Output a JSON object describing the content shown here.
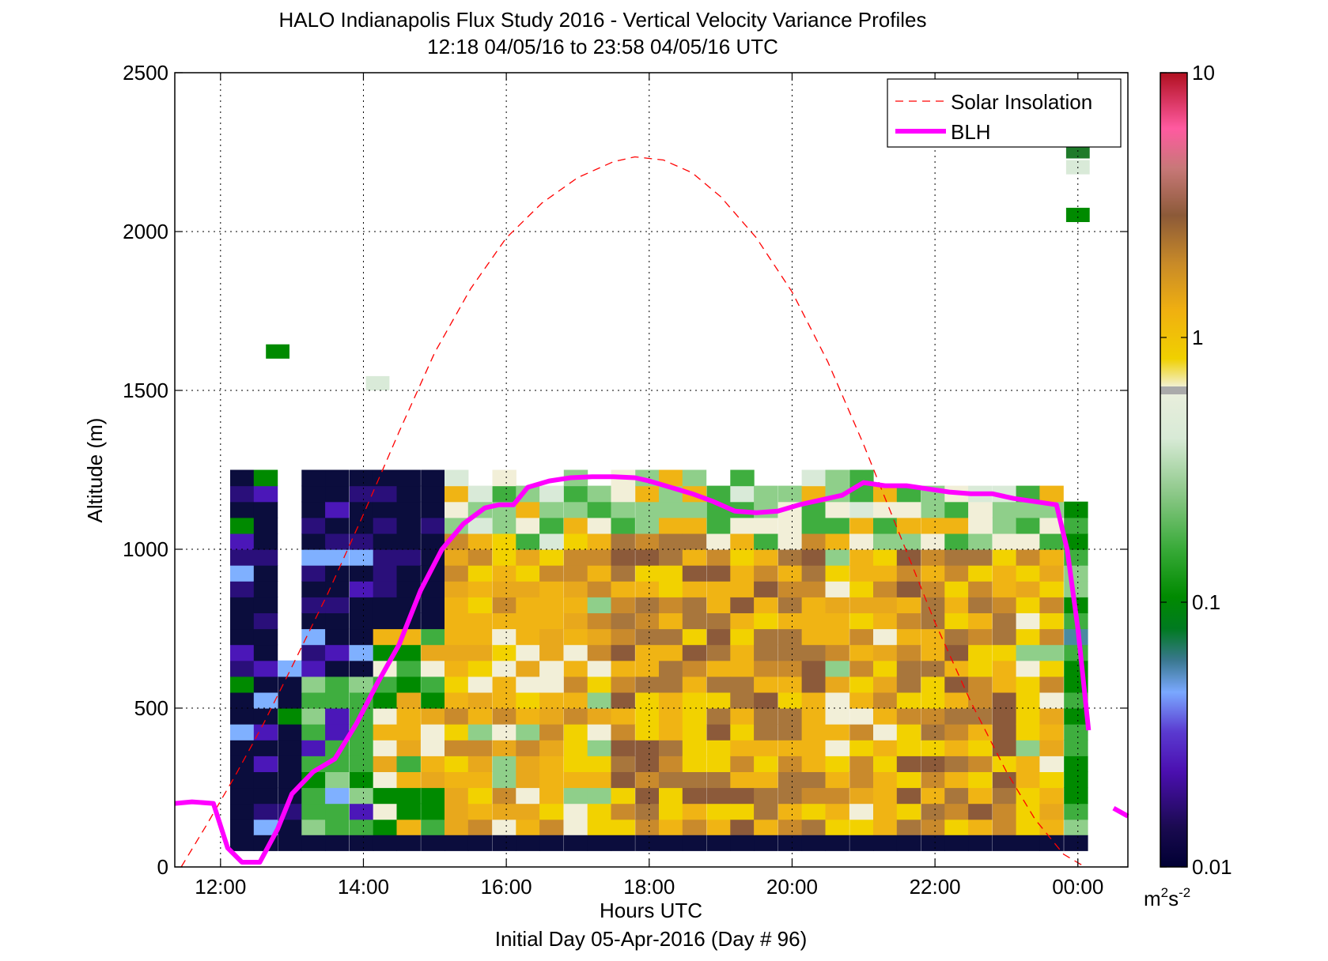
{
  "chart_data": {
    "type": "heatmap",
    "title": "HALO Indianapolis Flux Study 2016 - Vertical Velocity Variance Profiles",
    "subtitle": "12:18 04/05/16 to 23:58 04/05/16  UTC",
    "xlabel": "Hours UTC",
    "xlabel2": "Initial Day 05-Apr-2016 (Day # 96)",
    "ylabel": "Altitude (m)",
    "xlim": [
      11.36,
      24.7
    ],
    "ylim": [
      0,
      2500
    ],
    "x_ticks": [
      12,
      14,
      16,
      18,
      20,
      22,
      24
    ],
    "x_tick_labels": [
      "12:00",
      "14:00",
      "16:00",
      "18:00",
      "20:00",
      "22:00",
      "00:00"
    ],
    "y_ticks": [
      0,
      500,
      1000,
      1500,
      2000,
      2500
    ],
    "y_tick_labels": [
      "0",
      "500",
      "1000",
      "1500",
      "2000",
      "2500"
    ],
    "grid": true,
    "legend_position": "top-right",
    "colorbar": {
      "scale": "log",
      "range": [
        0.01,
        10
      ],
      "ticks": [
        0.01,
        0.1,
        1,
        10
      ],
      "tick_labels": [
        "0.01",
        "0.1",
        "1",
        "10"
      ],
      "units_base": "m",
      "units_sup1": "2",
      "units_mid": "s",
      "units_sup2": "-2"
    },
    "profile_times_hours": [
      12.3,
      12.63,
      12.97,
      13.3,
      13.63,
      13.97,
      14.3,
      14.63,
      14.97,
      15.3,
      15.63,
      15.97,
      16.3,
      16.63,
      16.97,
      17.3,
      17.63,
      17.97,
      18.3,
      18.63,
      18.97,
      19.3,
      19.63,
      19.97,
      20.3,
      20.63,
      20.97,
      21.3,
      21.63,
      21.97,
      22.3,
      22.63,
      22.97,
      23.3,
      23.63,
      23.97
    ],
    "series": [
      {
        "name": "Solar Insolation",
        "color": "#ff0000",
        "style": "dashed",
        "x": [
          11.45,
          11.8,
          12.2,
          12.6,
          13.0,
          13.5,
          14.0,
          14.5,
          15.0,
          15.5,
          16.0,
          16.5,
          17.0,
          17.5,
          17.8,
          18.2,
          18.6,
          19.0,
          19.5,
          20.0,
          20.5,
          21.0,
          21.5,
          22.0,
          22.5,
          23.0,
          23.4,
          23.8,
          24.1
        ],
        "y": [
          0,
          130,
          285,
          450,
          630,
          860,
          1110,
          1370,
          1620,
          1820,
          1980,
          2090,
          2170,
          2220,
          2235,
          2225,
          2185,
          2110,
          1980,
          1810,
          1590,
          1330,
          1050,
          770,
          520,
          300,
          150,
          40,
          0
        ]
      },
      {
        "name": "BLH",
        "color": "#ff00ff",
        "style": "solid",
        "segments": [
          {
            "x": [
              11.36,
              11.6,
              11.9,
              12.1,
              12.3,
              12.55,
              12.8,
              13.0,
              13.3,
              13.6,
              13.9,
              14.2,
              14.5,
              14.8,
              15.1,
              15.4,
              15.7,
              15.9,
              16.1,
              16.3,
              16.6,
              16.9,
              17.2,
              17.5,
              17.8,
              18.0,
              18.3,
              18.6,
              18.9,
              19.2,
              19.5,
              19.8,
              20.1,
              20.4,
              20.7,
              21.0,
              21.3,
              21.6,
              21.9,
              22.2,
              22.5,
              22.8,
              23.1,
              23.4,
              23.7,
              23.85,
              24.0,
              24.15
            ],
            "y": [
              200,
              205,
              200,
              60,
              15,
              15,
              120,
              230,
              300,
              340,
              450,
              580,
              700,
              870,
              1000,
              1080,
              1130,
              1140,
              1140,
              1195,
              1215,
              1225,
              1228,
              1228,
              1225,
              1215,
              1195,
              1175,
              1150,
              1120,
              1115,
              1120,
              1140,
              1155,
              1170,
              1210,
              1200,
              1200,
              1190,
              1180,
              1175,
              1175,
              1160,
              1150,
              1140,
              1000,
              750,
              430
            ]
          },
          {
            "x": [
              24.5,
              24.7
            ],
            "y": [
              185,
              160
            ]
          }
        ]
      }
    ]
  }
}
